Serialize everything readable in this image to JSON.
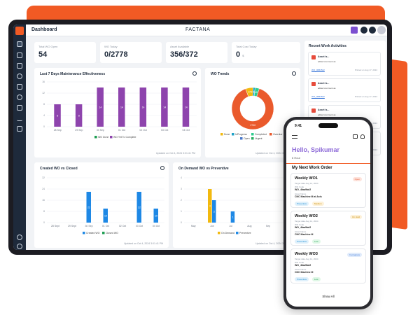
{
  "header": {
    "title": "Dashboard",
    "brand": "FACTANA"
  },
  "stats": [
    {
      "label": "Total WO Open",
      "value": "54",
      "unit": ""
    },
    {
      "label": "WO Today",
      "value": "0/2778",
      "unit": ""
    },
    {
      "label": "Asset Available",
      "value": "356/372",
      "unit": ""
    },
    {
      "label": "Total Cost Today",
      "value": "0",
      "unit": "$"
    }
  ],
  "charts": {
    "maintenance": {
      "title": "Last 7 Days Maintenance Effectiveness",
      "updated": "Updated on Oct 4, 2024 3:01:41 PM",
      "legend": [
        "WO Done",
        "WO Yet To Complete"
      ]
    },
    "trends": {
      "title": "WO Trends",
      "updated": "Updated on Oct 4, 2024 3:01:41 PM",
      "legend": [
        "Done",
        "InProgress",
        "Completed",
        "Overdue",
        "Open",
        "Urgent"
      ]
    },
    "created": {
      "title": "Created WO vs Closed",
      "updated": "Updated on Oct 4, 2024 3:01:41 PM",
      "legend": [
        "Created WO",
        "Closed WO"
      ]
    },
    "ondemand": {
      "title": "On Demand WO vs Preventive",
      "updated": "Updated on Oct 4, 2024 3:01:41 PM",
      "legend": [
        "On Demand",
        "Preventive"
      ]
    }
  },
  "chart_data": [
    {
      "type": "bar",
      "title": "Last 7 Days Maintenance Effectiveness",
      "categories": [
        "28 Sep",
        "29 Sep",
        "30 Sep",
        "01 Oct",
        "02 Oct",
        "03 Oct",
        "04 Oct"
      ],
      "series": [
        {
          "name": "WO Yet To Complete",
          "values": [
            8,
            8,
            14,
            14,
            14,
            14,
            14
          ]
        }
      ],
      "ylim": [
        0,
        16
      ],
      "yticks": [
        0,
        4,
        8,
        12,
        16
      ]
    },
    {
      "type": "pie",
      "title": "WO Trends",
      "labels": [
        "Done",
        "InProgress",
        "Completed",
        "Overdue",
        "Open",
        "Urgent"
      ],
      "values": [
        178,
        50,
        100,
        2740,
        0,
        0
      ],
      "value_labels": [
        "178",
        "50",
        "100",
        "2740",
        "",
        ""
      ],
      "colors": [
        "#f2b90f",
        "#1fa1c7",
        "#2ecc8f",
        "#ea5a2c",
        "#4a78c9",
        "#27ae60"
      ]
    },
    {
      "type": "bar",
      "title": "Created WO vs Closed",
      "categories": [
        "28 Sept",
        "29 Sept",
        "30 Sep",
        "01 Oct",
        "02 Oct",
        "03 Oct",
        "04 Oct"
      ],
      "series": [
        {
          "name": "Created WO",
          "values": [
            0,
            0,
            22,
            10,
            0,
            22,
            10
          ]
        }
      ],
      "ylim": [
        0,
        32
      ],
      "yticks": [
        0,
        8,
        16,
        24,
        32
      ]
    },
    {
      "type": "bar",
      "title": "On Demand WO vs Preventive",
      "categories": [
        "May",
        "Jun",
        "Jul",
        "Aug",
        "Sep",
        "Oct"
      ],
      "series": [
        {
          "name": "On Demand",
          "values": [
            0,
            3,
            0,
            0,
            0,
            0
          ]
        },
        {
          "name": "Preventive",
          "values": [
            0,
            2,
            1,
            0,
            0,
            0
          ]
        }
      ],
      "value_labels": [
        "3",
        "2"
      ],
      "ylim": [
        0,
        4
      ],
      "yticks": [
        0,
        1,
        2,
        3,
        4
      ]
    }
  ],
  "recent": {
    "title": "Recent Work Activities",
    "items": [
      {
        "name": "Asset is...",
        "text": "added comment as",
        "link": "WO_00B4522",
        "date": "Printed on Aug 17, 2024"
      },
      {
        "name": "Asset is...",
        "text": "added comment as",
        "link": "WO_00B4522",
        "date": "Printed on Aug 17, 2024"
      },
      {
        "name": "Asset is...",
        "text": "added comment as",
        "link": "WO_00B4522",
        "date": "Printed on Aug 17, 2024"
      },
      {
        "name": "Asset is...",
        "text": "added comment as",
        "link": "WO_00B4522",
        "date": "Printed on Aug 17, 2024"
      }
    ]
  },
  "phone": {
    "time": "9:41",
    "greeting": "Hello, Spikumar",
    "weather": "6 Hour",
    "section": "My Next Work Order",
    "show_all": "Show All",
    "orders": [
      {
        "title": "Weekly WO1",
        "sub1": "Target date Aug 14, 2024",
        "sub2": "WO Code",
        "code": "WO_4faa9bd2",
        "sub3": "Asset Name",
        "asset": "CNC Machine M at Axis",
        "status": "Open",
        "chips": [
          "Preventive",
          "Medium"
        ]
      },
      {
        "title": "Weekly WO2",
        "sub1": "Target date Aug 14, 2024",
        "sub2": "WO Code",
        "code": "WO_4faa9bd2",
        "sub3": "Asset Name",
        "asset": "CNC Machine M",
        "status": "On Hold",
        "chips": [
          "Preventive",
          "Low"
        ]
      },
      {
        "title": "Weekly WO3",
        "sub1": "Target date Aug 14, 2024",
        "sub2": "WO Code",
        "code": "WO_4faa9bd2",
        "sub3": "Asset Name",
        "asset": "CNC Machine M",
        "status": "In progress",
        "chips": [
          "Preventive",
          "Low"
        ]
      }
    ]
  }
}
